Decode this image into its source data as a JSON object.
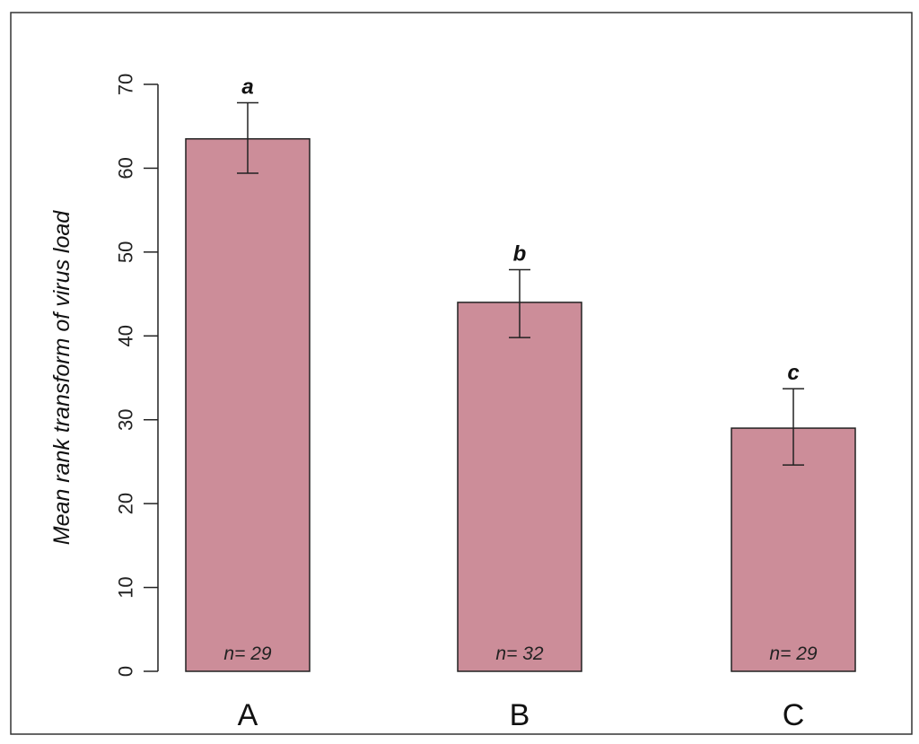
{
  "chart_data": {
    "type": "bar",
    "categories": [
      "A",
      "B",
      "C"
    ],
    "values": [
      63.5,
      44,
      29
    ],
    "error_upper": [
      67.8,
      47.9,
      33.7
    ],
    "error_lower": [
      59.4,
      39.8,
      24.6
    ],
    "significance_letters": [
      "a",
      "b",
      "c"
    ],
    "n_labels": [
      "n= 29",
      "n= 32",
      "n= 29"
    ],
    "ylabel": "Mean rank transform of virus load",
    "xlabel": "",
    "ylim": [
      0,
      70
    ],
    "yticks": [
      0,
      10,
      20,
      30,
      40,
      50,
      60,
      70
    ],
    "bar_color": "#cc8d99",
    "grid": false
  }
}
